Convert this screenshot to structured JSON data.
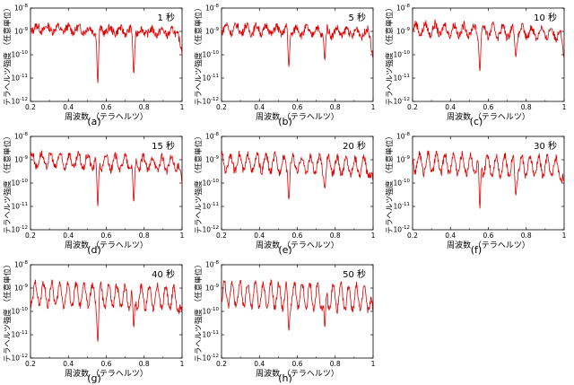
{
  "chart_data": [
    {
      "type": "line",
      "panel_label": "(a)",
      "time_label": "1 秒",
      "xlabel": "周波数 （テラヘルツ）",
      "ylabel": "テラヘルツ強度 （任意単位）",
      "xlim": [
        0.2,
        1
      ],
      "ylim": [
        1e-12,
        1e-08
      ],
      "yscale": "log",
      "x_ticks": [
        "0.2",
        "0.4",
        "0.6",
        "0.8",
        "1"
      ],
      "y_tick_exponents": [
        "-8",
        "-9",
        "-10",
        "-11",
        "-12"
      ],
      "color": "#e00000",
      "base_level": 1.5e-09,
      "dips": [
        {
          "x": 0.555,
          "y": 6e-12
        },
        {
          "x": 0.745,
          "y": 1.5e-11
        }
      ]
    },
    {
      "type": "line",
      "panel_label": "(b)",
      "time_label": "5 秒",
      "xlabel": "周波数 （テラヘルツ）",
      "ylabel": "テラヘルツ強度 （任意単位）",
      "xlim": [
        0.2,
        1
      ],
      "ylim": [
        1e-12,
        1e-08
      ],
      "yscale": "log",
      "x_ticks": [
        "0.2",
        "0.4",
        "0.6",
        "0.8",
        "1"
      ],
      "y_tick_exponents": [
        "-8",
        "-9",
        "-10",
        "-11",
        "-12"
      ],
      "color": "#e00000",
      "base_level": 1.5e-09,
      "dips": [
        {
          "x": 0.555,
          "y": 3e-11
        },
        {
          "x": 0.745,
          "y": 6e-11
        }
      ]
    },
    {
      "type": "line",
      "panel_label": "(c)",
      "time_label": "10 秒",
      "xlabel": "周波数 （テラヘルツ）",
      "ylabel": "テラヘルツ強度 （任意単位）",
      "xlim": [
        0.2,
        1
      ],
      "ylim": [
        1e-12,
        1e-08
      ],
      "yscale": "log",
      "x_ticks": [
        "0.2",
        "0.4",
        "0.6",
        "0.8",
        "1"
      ],
      "y_tick_exponents": [
        "-8",
        "-9",
        "-10",
        "-11",
        "-12"
      ],
      "color": "#e00000",
      "base_level": 1.5e-09,
      "dips": [
        {
          "x": 0.555,
          "y": 2e-11
        },
        {
          "x": 0.745,
          "y": 8e-11
        }
      ]
    },
    {
      "type": "line",
      "panel_label": "(d)",
      "time_label": "15 秒",
      "xlabel": "周波数 （テラヘルツ）",
      "ylabel": "テラヘルツ強度 （任意単位）",
      "xlim": [
        0.2,
        1
      ],
      "ylim": [
        1e-12,
        1e-08
      ],
      "yscale": "log",
      "x_ticks": [
        "0.2",
        "0.4",
        "0.6",
        "0.8",
        "1"
      ],
      "y_tick_exponents": [
        "-8",
        "-9",
        "-10",
        "-11",
        "-12"
      ],
      "color": "#e00000",
      "base_level": 1.2e-09,
      "dips": [
        {
          "x": 0.555,
          "y": 1e-11
        },
        {
          "x": 0.745,
          "y": 1.5e-11
        }
      ]
    },
    {
      "type": "line",
      "panel_label": "(e)",
      "time_label": "20 秒",
      "xlabel": "周波数 （テラヘルツ）",
      "ylabel": "テラヘルツ強度 （任意単位）",
      "xlim": [
        0.2,
        1
      ],
      "ylim": [
        1e-12,
        1e-08
      ],
      "yscale": "log",
      "x_ticks": [
        "0.2",
        "0.4",
        "0.6",
        "0.8",
        "1"
      ],
      "y_tick_exponents": [
        "-8",
        "-9",
        "-10",
        "-11",
        "-12"
      ],
      "color": "#e00000",
      "base_level": 1e-09,
      "dips": [
        {
          "x": 0.555,
          "y": 2e-11
        },
        {
          "x": 0.745,
          "y": 6e-11
        }
      ]
    },
    {
      "type": "line",
      "panel_label": "(f)",
      "time_label": "30 秒",
      "xlabel": "周波数 （テラヘルツ）",
      "ylabel": "テラヘルツ強度 （任意単位）",
      "xlim": [
        0.2,
        1
      ],
      "ylim": [
        1e-12,
        1e-08
      ],
      "yscale": "log",
      "x_ticks": [
        "0.2",
        "0.4",
        "0.6",
        "0.8",
        "1"
      ],
      "y_tick_exponents": [
        "-8",
        "-9",
        "-10",
        "-11",
        "-12"
      ],
      "color": "#e00000",
      "base_level": 1e-09,
      "dips": [
        {
          "x": 0.555,
          "y": 8e-12
        },
        {
          "x": 0.745,
          "y": 3e-11
        }
      ]
    },
    {
      "type": "line",
      "panel_label": "(g)",
      "time_label": "40 秒",
      "xlabel": "周波数 （テラヘルツ）",
      "ylabel": "テラヘルツ強度 （任意単位）",
      "xlim": [
        0.2,
        1
      ],
      "ylim": [
        1e-12,
        1e-08
      ],
      "yscale": "log",
      "x_ticks": [
        "0.2",
        "0.4",
        "0.6",
        "0.8",
        "1"
      ],
      "y_tick_exponents": [
        "-8",
        "-9",
        "-10",
        "-11",
        "-12"
      ],
      "color": "#e00000",
      "base_level": 8e-10,
      "dips": [
        {
          "x": 0.555,
          "y": 5e-12
        },
        {
          "x": 0.745,
          "y": 2e-11
        }
      ]
    },
    {
      "type": "line",
      "panel_label": "(h)",
      "time_label": "50 秒",
      "xlabel": "周波数 （テラヘルツ）",
      "ylabel": "テラヘルツ強度 （任意単位）",
      "xlim": [
        0.2,
        1
      ],
      "ylim": [
        1e-12,
        1e-08
      ],
      "yscale": "log",
      "x_ticks": [
        "0.2",
        "0.4",
        "0.6",
        "0.8",
        "1"
      ],
      "y_tick_exponents": [
        "-8",
        "-9",
        "-10",
        "-11",
        "-12"
      ],
      "color": "#e00000",
      "base_level": 8e-10,
      "dips": [
        {
          "x": 0.555,
          "y": 1.5e-11
        },
        {
          "x": 0.745,
          "y": 2e-11
        }
      ]
    }
  ]
}
